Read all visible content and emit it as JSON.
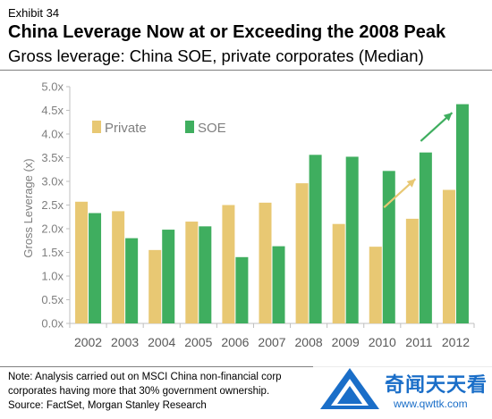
{
  "header": {
    "exhibit": "Exhibit 34",
    "title": "China Leverage Now at or Exceeding the 2008 Peak",
    "subtitle": "Gross leverage: China SOE, private corporates (Median)"
  },
  "chart_data": {
    "type": "bar",
    "categories": [
      "2002",
      "2003",
      "2004",
      "2005",
      "2006",
      "2007",
      "2008",
      "2009",
      "2010",
      "2011",
      "2012"
    ],
    "series": [
      {
        "name": "Private",
        "color": "#e8c873",
        "values": [
          2.57,
          2.37,
          1.55,
          2.15,
          2.5,
          2.55,
          2.96,
          2.1,
          1.62,
          2.21,
          2.82
        ]
      },
      {
        "name": "SOE",
        "color": "#3fae5f",
        "values": [
          2.33,
          1.8,
          1.98,
          2.05,
          1.4,
          1.63,
          3.56,
          3.52,
          3.22,
          3.61,
          4.63
        ]
      }
    ],
    "ylabel": "Gross Leverage (x)",
    "ylim": [
      0,
      5
    ],
    "yticks": [
      "0.0x",
      "0.5x",
      "1.0x",
      "1.5x",
      "2.0x",
      "2.5x",
      "3.0x",
      "3.5x",
      "4.0x",
      "4.5x",
      "5.0x"
    ],
    "legend": "top-left",
    "grid": false,
    "annotations": [
      {
        "type": "arrow",
        "from": [
          "2010",
          2.45
        ],
        "to": [
          "2011",
          3.05
        ],
        "color": "#e8c873"
      },
      {
        "type": "arrow",
        "from": [
          "2011",
          3.85
        ],
        "to": [
          "2012",
          4.45
        ],
        "color": "#3fae5f"
      }
    ]
  },
  "footer": {
    "note_line1": "Note: Analysis carried out on MSCI China non-financial corp",
    "note_line2": "corporates having more that 30% government ownership.",
    "source": "Source: FactSet, Morgan Stanley Research"
  },
  "watermark": {
    "name": "奇闻天天看",
    "url": "www.qwttk.com",
    "color": "#1a6ec8"
  }
}
